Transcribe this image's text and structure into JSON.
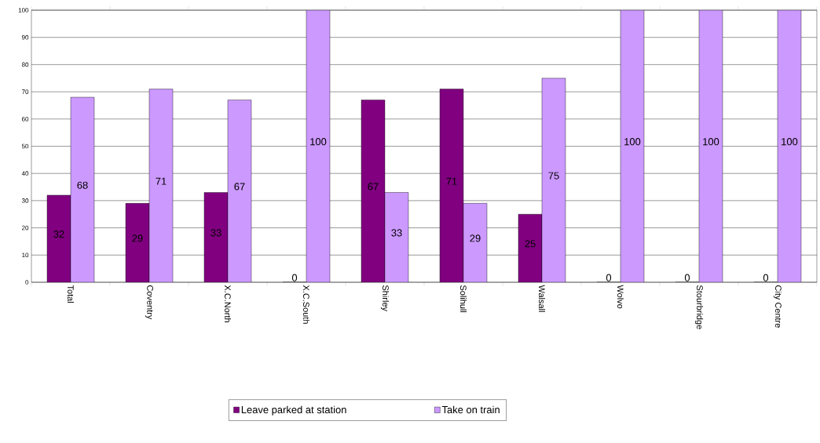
{
  "chart_data": {
    "type": "bar",
    "categories": [
      "Total",
      "Coventry",
      "X.C.North",
      "X.C.South",
      "Shirley",
      "Solihull",
      "Walsall",
      "Wolvo",
      "Stourbridge",
      "City Centre"
    ],
    "series": [
      {
        "name": "Leave parked at station",
        "color": "#800080",
        "values": [
          32,
          29,
          33,
          0,
          67,
          71,
          25,
          0,
          0,
          0
        ]
      },
      {
        "name": "Take on train",
        "color": "#cc99ff",
        "values": [
          68,
          71,
          67,
          100,
          33,
          29,
          75,
          100,
          100,
          100
        ]
      }
    ],
    "ylim": [
      0,
      100
    ],
    "yticks": [
      0,
      10,
      20,
      30,
      40,
      50,
      60,
      70,
      80,
      90,
      100
    ],
    "grid": "y",
    "legend": "bottom",
    "data_labels": true
  }
}
